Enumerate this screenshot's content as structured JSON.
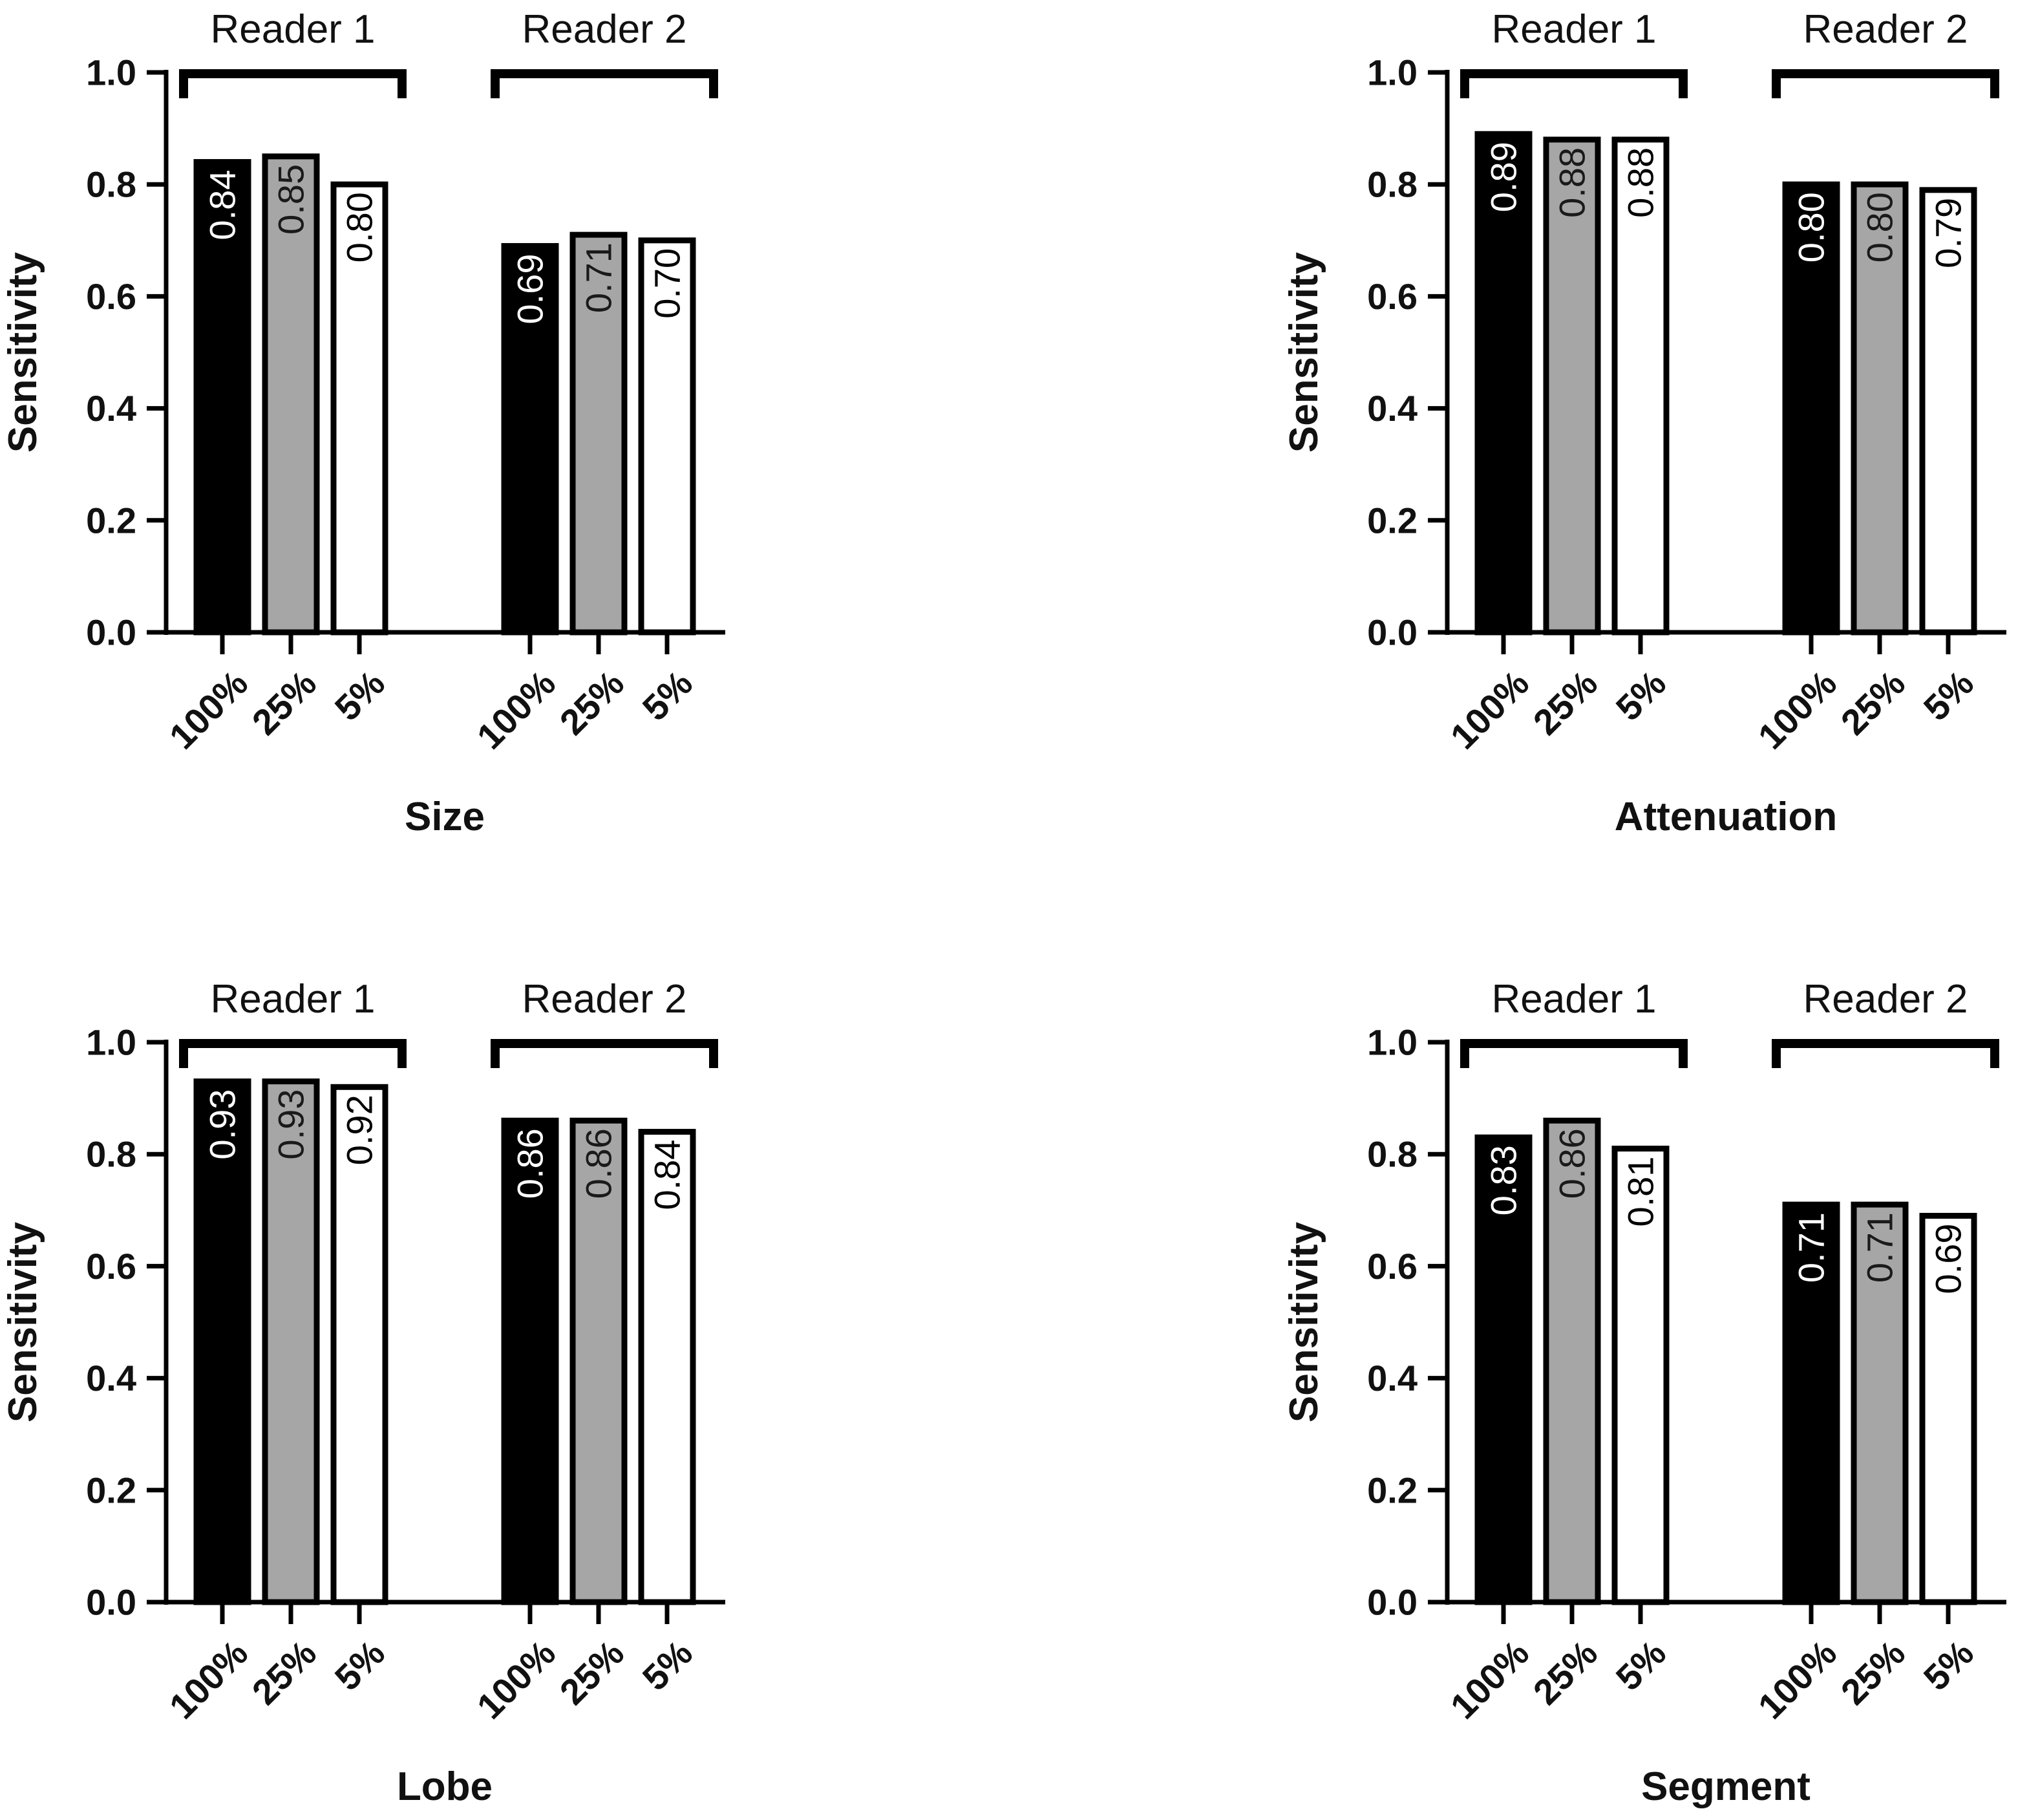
{
  "figure": {
    "styles": {
      "bar_fill_colors": [
        "#000000",
        "#a6a6a6",
        "#ffffff"
      ],
      "bar_stroke_color": "#000000",
      "label_colors": [
        "#ffffff",
        "#1a1a1a",
        "#000000"
      ]
    }
  },
  "chart_data": [
    {
      "type": "bar",
      "title": "",
      "xlabel": "Size",
      "ylabel": "Sensitivity",
      "ylim": [
        0,
        1.0
      ],
      "yticks": [
        "0.0",
        "0.2",
        "0.4",
        "0.6",
        "0.8",
        "1.0"
      ],
      "groups": [
        {
          "name": "Reader 1",
          "categories": [
            "100%",
            "25%",
            "5%"
          ],
          "values": [
            0.84,
            0.85,
            0.8
          ],
          "labels": [
            "0.84",
            "0.85",
            "0.80"
          ]
        },
        {
          "name": "Reader 2",
          "categories": [
            "100%",
            "25%",
            "5%"
          ],
          "values": [
            0.69,
            0.71,
            0.7
          ],
          "labels": [
            "0.69",
            "0.71",
            "0.70"
          ]
        }
      ]
    },
    {
      "type": "bar",
      "title": "",
      "xlabel": "Attenuation",
      "ylabel": "Sensitivity",
      "ylim": [
        0,
        1.0
      ],
      "yticks": [
        "0.0",
        "0.2",
        "0.4",
        "0.6",
        "0.8",
        "1.0"
      ],
      "groups": [
        {
          "name": "Reader 1",
          "categories": [
            "100%",
            "25%",
            "5%"
          ],
          "values": [
            0.89,
            0.88,
            0.88
          ],
          "labels": [
            "0.89",
            "0.88",
            "0.88"
          ]
        },
        {
          "name": "Reader 2",
          "categories": [
            "100%",
            "25%",
            "5%"
          ],
          "values": [
            0.8,
            0.8,
            0.79
          ],
          "labels": [
            "0.80",
            "0.80",
            "0.79"
          ]
        }
      ]
    },
    {
      "type": "bar",
      "title": "",
      "xlabel": "Lobe",
      "ylabel": "Sensitivity",
      "ylim": [
        0,
        1.0
      ],
      "yticks": [
        "0.0",
        "0.2",
        "0.4",
        "0.6",
        "0.8",
        "1.0"
      ],
      "groups": [
        {
          "name": "Reader 1",
          "categories": [
            "100%",
            "25%",
            "5%"
          ],
          "values": [
            0.93,
            0.93,
            0.92
          ],
          "labels": [
            "0.93",
            "0.93",
            "0.92"
          ]
        },
        {
          "name": "Reader 2",
          "categories": [
            "100%",
            "25%",
            "5%"
          ],
          "values": [
            0.86,
            0.86,
            0.84
          ],
          "labels": [
            "0.86",
            "0.86",
            "0.84"
          ]
        }
      ]
    },
    {
      "type": "bar",
      "title": "",
      "xlabel": "Segment",
      "ylabel": "Sensitivity",
      "ylim": [
        0,
        1.0
      ],
      "yticks": [
        "0.0",
        "0.2",
        "0.4",
        "0.6",
        "0.8",
        "1.0"
      ],
      "groups": [
        {
          "name": "Reader 1",
          "categories": [
            "100%",
            "25%",
            "5%"
          ],
          "values": [
            0.83,
            0.86,
            0.81
          ],
          "labels": [
            "0.83",
            "0.86",
            "0.81"
          ]
        },
        {
          "name": "Reader 2",
          "categories": [
            "100%",
            "25%",
            "5%"
          ],
          "values": [
            0.71,
            0.71,
            0.69
          ],
          "labels": [
            "0.71",
            "0.71",
            "0.69"
          ]
        }
      ]
    }
  ]
}
